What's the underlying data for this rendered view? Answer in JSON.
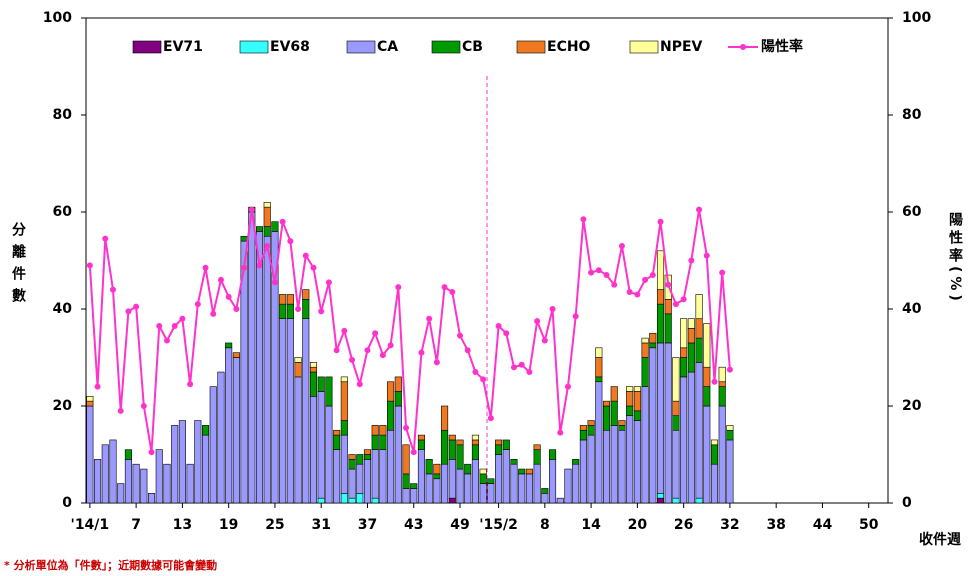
{
  "chart_data": {
    "type": "bar",
    "y_label": "分離件數",
    "y2_label": "陽性率(%)",
    "x_label": "收件週",
    "footnote": "* 分析單位為「件數」；近期數據可能會變動",
    "ylim": [
      0,
      100
    ],
    "yticks": [
      0,
      20,
      40,
      60,
      80,
      100
    ],
    "y2lim": [
      0,
      100
    ],
    "y2ticks": [
      0,
      20,
      40,
      60,
      80,
      100
    ],
    "grid": false,
    "categories": [
      "'14/1",
      null,
      null,
      null,
      null,
      null,
      "7",
      null,
      null,
      null,
      null,
      null,
      "13",
      null,
      null,
      null,
      null,
      null,
      "19",
      null,
      null,
      null,
      null,
      null,
      "25",
      null,
      null,
      null,
      null,
      null,
      "31",
      null,
      null,
      null,
      null,
      null,
      "37",
      null,
      null,
      null,
      null,
      null,
      "43",
      null,
      null,
      null,
      null,
      null,
      "49",
      null,
      null,
      null,
      null,
      "'15/2",
      null,
      null,
      null,
      null,
      null,
      "8",
      null,
      null,
      null,
      null,
      null,
      "14",
      null,
      null,
      null,
      null,
      null,
      "20",
      null,
      null,
      null,
      null,
      null,
      "26",
      null,
      null,
      null,
      null,
      null,
      "32",
      null,
      null,
      null,
      null,
      null,
      "38",
      null,
      null,
      null,
      null,
      null,
      "44",
      null,
      null,
      null,
      null,
      null,
      "50",
      null,
      null
    ],
    "series": [
      {
        "name": "EV71",
        "color": "#800080",
        "values": [
          0,
          0,
          0,
          0,
          0,
          0,
          0,
          0,
          0,
          0,
          0,
          0,
          0,
          0,
          0,
          0,
          0,
          0,
          0,
          0,
          0,
          0,
          0,
          0,
          0,
          0,
          0,
          0,
          0,
          0,
          0,
          0,
          0,
          0,
          0,
          0,
          0,
          0,
          0,
          0,
          0,
          0,
          0,
          0,
          0,
          0,
          0,
          1,
          0,
          0,
          0,
          0,
          0,
          0,
          0,
          0,
          0,
          0,
          0,
          0,
          0,
          0,
          0,
          0,
          0,
          0,
          0,
          0,
          0,
          0,
          0,
          0,
          0,
          0,
          1,
          0,
          0,
          0,
          0,
          0,
          0,
          0,
          0,
          0,
          null,
          null,
          null,
          null,
          null,
          null,
          null,
          null,
          null,
          null,
          null,
          null,
          null,
          null,
          null,
          null,
          null,
          null,
          null,
          null
        ]
      },
      {
        "name": "EV68",
        "color": "#33ffff",
        "values": [
          0,
          0,
          0,
          0,
          0,
          0,
          0,
          0,
          0,
          0,
          0,
          0,
          0,
          0,
          0,
          0,
          0,
          0,
          0,
          0,
          0,
          0,
          0,
          0,
          0,
          0,
          0,
          0,
          0,
          0,
          1,
          0,
          0,
          2,
          1,
          2,
          0,
          1,
          0,
          0,
          0,
          0,
          0,
          0,
          0,
          0,
          0,
          0,
          0,
          0,
          0,
          0,
          0,
          0,
          0,
          0,
          0,
          0,
          0,
          0,
          0,
          0,
          0,
          0,
          0,
          0,
          0,
          0,
          0,
          0,
          0,
          0,
          0,
          0,
          1,
          0,
          1,
          0,
          0,
          1,
          0,
          0,
          0,
          0,
          null,
          null,
          null,
          null,
          null,
          null,
          null,
          null,
          null,
          null,
          null,
          null,
          null,
          null,
          null,
          null,
          null,
          null,
          null,
          null
        ]
      },
      {
        "name": "CA",
        "color": "#9999ff",
        "values": [
          20,
          9,
          12,
          13,
          4,
          9,
          8,
          7,
          2,
          11,
          8,
          16,
          17,
          8,
          17,
          14,
          24,
          27,
          32,
          30,
          54,
          60,
          56,
          55,
          56,
          38,
          38,
          26,
          38,
          22,
          22,
          20,
          11,
          12,
          6,
          6,
          9,
          10,
          11,
          15,
          20,
          3,
          3,
          11,
          6,
          5,
          8,
          8,
          7,
          6,
          9,
          4,
          4,
          10,
          11,
          8,
          6,
          6,
          8,
          2,
          9,
          1,
          7,
          8,
          13,
          14,
          25,
          15,
          16,
          15,
          18,
          17,
          24,
          32,
          31,
          33,
          14,
          26,
          27,
          28,
          20,
          8,
          20,
          13,
          null,
          null,
          null,
          null,
          null,
          null,
          null,
          null,
          null,
          null,
          null,
          null,
          null,
          null,
          null,
          null,
          null,
          null,
          null,
          null
        ]
      },
      {
        "name": "CB",
        "color": "#009900",
        "values": [
          0,
          0,
          0,
          0,
          0,
          2,
          0,
          0,
          0,
          0,
          0,
          0,
          0,
          0,
          0,
          2,
          0,
          0,
          1,
          0,
          1,
          1,
          1,
          2,
          2,
          3,
          3,
          0,
          4,
          5,
          3,
          6,
          3,
          3,
          2,
          2,
          1,
          3,
          3,
          6,
          3,
          3,
          1,
          2,
          3,
          1,
          7,
          4,
          5,
          2,
          3,
          2,
          1,
          2,
          2,
          1,
          1,
          0,
          3,
          1,
          2,
          0,
          0,
          1,
          2,
          2,
          1,
          5,
          5,
          1,
          2,
          2,
          6,
          1,
          8,
          6,
          3,
          4,
          6,
          5,
          4,
          4,
          4,
          2,
          null,
          null,
          null,
          null,
          null,
          null,
          null,
          null,
          null,
          null,
          null,
          null,
          null,
          null,
          null,
          null,
          null,
          null,
          null,
          null
        ]
      },
      {
        "name": "ECHO",
        "color": "#f07820",
        "values": [
          1,
          0,
          0,
          0,
          0,
          0,
          0,
          0,
          0,
          0,
          0,
          0,
          0,
          0,
          0,
          0,
          0,
          0,
          0,
          1,
          0,
          0,
          0,
          4,
          0,
          2,
          2,
          3,
          2,
          1,
          0,
          0,
          1,
          8,
          1,
          0,
          1,
          2,
          2,
          4,
          3,
          6,
          0,
          1,
          0,
          2,
          5,
          1,
          1,
          0,
          1,
          0,
          0,
          1,
          0,
          0,
          0,
          1,
          1,
          0,
          0,
          0,
          0,
          0,
          1,
          1,
          4,
          1,
          3,
          1,
          3,
          4,
          3,
          2,
          3,
          3,
          3,
          2,
          3,
          4,
          4,
          0,
          1,
          0,
          null,
          null,
          null,
          null,
          null,
          null,
          null,
          null,
          null,
          null,
          null,
          null,
          null,
          null,
          null,
          null,
          null,
          null,
          null,
          null
        ]
      },
      {
        "name": "NPEV",
        "color": "#ffff99",
        "values": [
          1,
          0,
          0,
          0,
          0,
          0,
          0,
          0,
          0,
          0,
          0,
          0,
          0,
          0,
          0,
          0,
          0,
          0,
          0,
          0,
          0,
          0,
          0,
          1,
          0,
          0,
          0,
          1,
          0,
          1,
          0,
          0,
          0,
          1,
          0,
          0,
          0,
          0,
          0,
          0,
          0,
          0,
          0,
          0,
          0,
          0,
          0,
          0,
          0,
          0,
          1,
          1,
          0,
          0,
          0,
          0,
          0,
          0,
          0,
          0,
          0,
          0,
          0,
          0,
          0,
          0,
          2,
          0,
          0,
          0,
          1,
          1,
          1,
          0,
          8,
          5,
          9,
          6,
          2,
          5,
          9,
          1,
          3,
          1,
          null,
          null,
          null,
          null,
          null,
          null,
          null,
          null,
          null,
          null,
          null,
          null,
          null,
          null,
          null,
          null,
          null,
          null,
          null,
          null
        ]
      },
      {
        "name": "陽性率",
        "color": "#ff33cc",
        "type": "line",
        "axis": "y2",
        "values": [
          49,
          24,
          54.5,
          44,
          19,
          39.5,
          40.5,
          20,
          10.5,
          36.5,
          33.5,
          36.5,
          38,
          24.5,
          41,
          48.5,
          39,
          46,
          42.5,
          40,
          48.5,
          60.5,
          49,
          53,
          45.5,
          58,
          54,
          40,
          51,
          48.5,
          39.5,
          45.5,
          31.5,
          35.5,
          29.5,
          24.5,
          31.5,
          35,
          30.5,
          32.5,
          44.5,
          15.5,
          10.5,
          31,
          38,
          29,
          44.5,
          43.5,
          34.5,
          31.5,
          27,
          25.5,
          17.5,
          36.5,
          35,
          28,
          28.5,
          27,
          37.5,
          33.5,
          40,
          14.5,
          24,
          38.5,
          58.5,
          47.5,
          48,
          47,
          45,
          53,
          43.5,
          43,
          46,
          47,
          58,
          45,
          41,
          42,
          50,
          60.5,
          51,
          25,
          47.5,
          27.5,
          null,
          null,
          null,
          null,
          null,
          null,
          null,
          null,
          null,
          null,
          null,
          null,
          null,
          null,
          null,
          null,
          null,
          null,
          null,
          null
        ]
      }
    ]
  }
}
